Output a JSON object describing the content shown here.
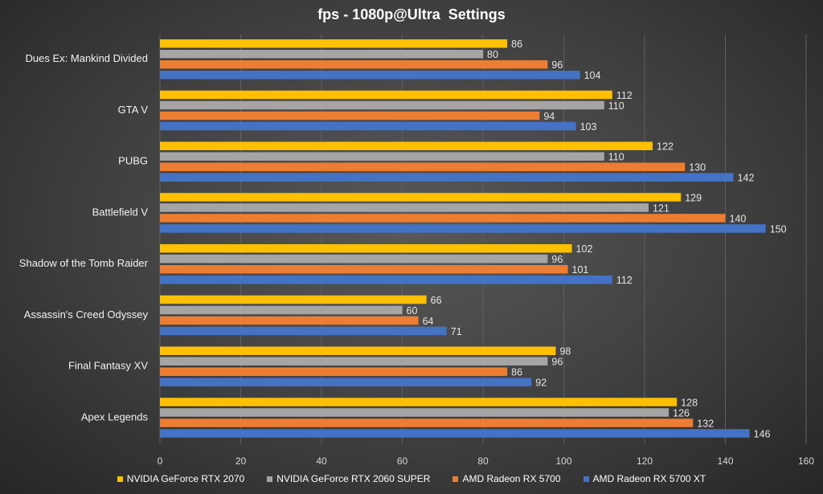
{
  "chart_data": {
    "type": "bar",
    "orientation": "horizontal",
    "title": "fps - 1080p@Ultra  Settings",
    "categories": [
      "Dues Ex: Mankind Divided",
      "GTA V",
      "PUBG",
      "Battlefield V",
      "Shadow of the Tomb Raider",
      "Assassin's Creed Odyssey",
      "Final Fantasy XV",
      "Apex Legends"
    ],
    "series": [
      {
        "name": "NVIDIA GeForce RTX 2070",
        "color": "#FFC000",
        "values": [
          86,
          112,
          122,
          129,
          102,
          66,
          98,
          128
        ]
      },
      {
        "name": "NVIDIA GeForce RTX 2060 SUPER",
        "color": "#A5A5A5",
        "values": [
          80,
          110,
          110,
          121,
          96,
          60,
          96,
          126
        ]
      },
      {
        "name": "AMD Radeon RX 5700",
        "color": "#ED7D31",
        "values": [
          96,
          94,
          130,
          140,
          101,
          64,
          86,
          132
        ]
      },
      {
        "name": "AMD Radeon RX 5700 XT",
        "color": "#4472C4",
        "values": [
          104,
          103,
          142,
          150,
          112,
          71,
          92,
          146
        ]
      }
    ],
    "xlim": [
      0,
      160
    ],
    "xticks": [
      "0",
      "20",
      "40",
      "60",
      "80",
      "100",
      "120",
      "140",
      "160"
    ],
    "xlabel": "",
    "ylabel": "",
    "grid": "vertical",
    "data_labels": true,
    "legend_position": "bottom"
  }
}
